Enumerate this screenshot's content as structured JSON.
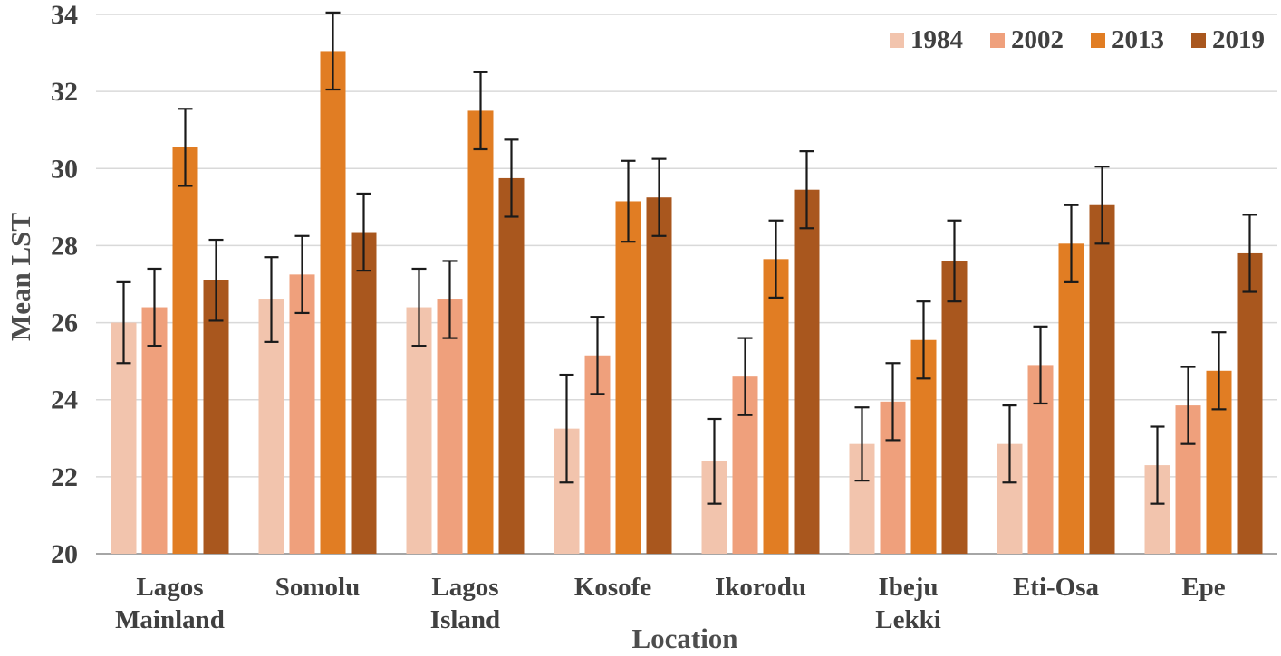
{
  "chart_data": {
    "type": "bar",
    "title": "",
    "xlabel": "Location",
    "ylabel": "Mean LST",
    "ylim": [
      20,
      34
    ],
    "yticks": [
      20,
      22,
      24,
      26,
      28,
      30,
      32,
      34
    ],
    "grid": true,
    "legend_position": "top-right",
    "categories": [
      "Lagos\nMainland",
      "Somolu",
      "Lagos\nIsland",
      "Kosofe",
      "Ikorodu",
      "Ibeju\nLekki",
      "Eti-Osa",
      "Epe"
    ],
    "series": [
      {
        "name": "1984",
        "color": "#f2c4ad",
        "values": [
          26.0,
          26.6,
          26.4,
          23.25,
          22.4,
          22.85,
          22.85,
          22.3
        ],
        "errors": [
          1.05,
          1.1,
          1.0,
          1.4,
          1.1,
          0.95,
          1.0,
          1.0
        ]
      },
      {
        "name": "2002",
        "color": "#efa07c",
        "values": [
          26.4,
          27.25,
          26.6,
          25.15,
          24.6,
          23.95,
          24.9,
          23.85
        ],
        "errors": [
          1.0,
          1.0,
          1.0,
          1.0,
          1.0,
          1.0,
          1.0,
          1.0
        ]
      },
      {
        "name": "2013",
        "color": "#e17d23",
        "values": [
          30.55,
          33.05,
          31.5,
          29.15,
          27.65,
          25.55,
          28.05,
          24.75
        ],
        "errors": [
          1.0,
          1.0,
          1.0,
          1.05,
          1.0,
          1.0,
          1.0,
          1.0
        ]
      },
      {
        "name": "2019",
        "color": "#a9571e",
        "values": [
          27.1,
          28.35,
          29.75,
          29.25,
          29.45,
          27.6,
          29.05,
          27.8
        ],
        "errors": [
          1.05,
          1.0,
          1.0,
          1.0,
          1.0,
          1.05,
          1.0,
          1.0
        ]
      }
    ],
    "colors": {
      "grid": "#d9d9d9",
      "axis": "#a6a6a6",
      "error": "#1a1a1a",
      "text": "#404040"
    }
  }
}
